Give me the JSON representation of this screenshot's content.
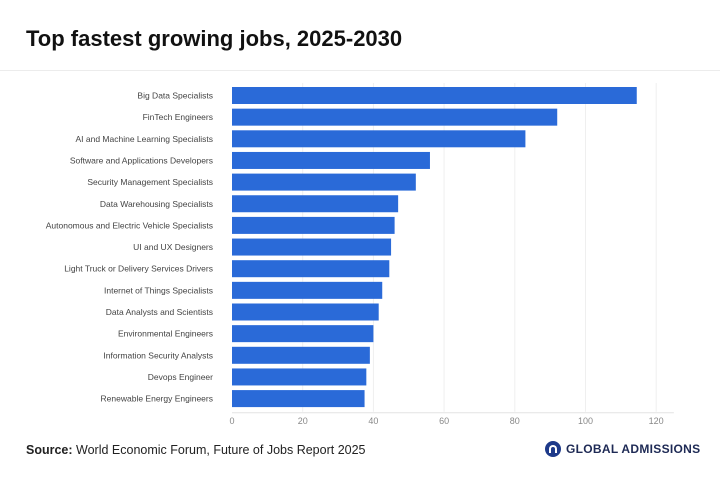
{
  "chart_data": {
    "type": "bar",
    "orientation": "horizontal",
    "title": "Top fastest growing jobs, 2025-2030",
    "categories": [
      "Big Data Specialists",
      "FinTech Engineers",
      "AI and Machine Learning Specialists",
      "Software and Applications Developers",
      "Security Management Specialists",
      "Data Warehousing Specialists",
      "Autonomous and Electric Vehicle Specialists",
      "UI and UX Designers",
      "Light Truck or Delivery Services Drivers",
      "Internet of Things Specialists",
      "Data Analysts and Scientists",
      "Environmental Engineers",
      "Information Security Analysts",
      "Devops Engineer",
      "Renewable Energy Engineers"
    ],
    "values": [
      114.5,
      92,
      83,
      56,
      52,
      47,
      46,
      45,
      44.5,
      42.5,
      41.5,
      40,
      39,
      38,
      37.5
    ],
    "xlim": [
      0,
      125
    ],
    "xticks": [
      0,
      20,
      40,
      60,
      80,
      100,
      120
    ],
    "xlabel": "",
    "ylabel": "",
    "grid": true,
    "bar_color": "#2a6ad8"
  },
  "footer": {
    "source_label": "Source:",
    "source_text": " World Economic Forum, Future of Jobs Report 2025",
    "logo_text": "GLOBAL ADMISSIONS"
  }
}
